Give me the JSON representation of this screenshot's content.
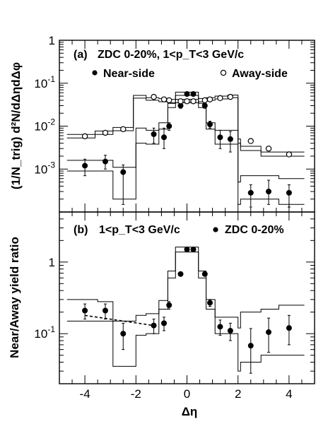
{
  "chart_data": [
    {
      "type": "scatter",
      "panel_label": "(a)",
      "title": "ZDC 0-20%, 1<p_T<3 GeV/c",
      "ylabel": "(1/N_trig) d²N/dΔηdΔφ",
      "xlabel": "",
      "xlim": [
        -5,
        5
      ],
      "ylim": [
        0.0001,
        1
      ],
      "yscale": "log",
      "y_ticks": [
        {
          "value": 0.001,
          "base": "10",
          "exp": "-3"
        },
        {
          "value": 0.01,
          "base": "10",
          "exp": "-2"
        },
        {
          "value": 0.1,
          "base": "10",
          "exp": "-1"
        },
        {
          "value": 1,
          "base": "1",
          "exp": ""
        }
      ],
      "legend_position": "top-left",
      "series": [
        {
          "name": "Near-side",
          "marker": "filled-circle",
          "x": [
            -4.0,
            -3.2,
            -2.5,
            -1.3,
            -0.9,
            -0.7,
            -0.25,
            0.0,
            0.25,
            0.7,
            0.9,
            1.3,
            1.7,
            2.5,
            3.2,
            4.0
          ],
          "y": [
            0.0012,
            0.0015,
            0.00085,
            0.0065,
            0.0055,
            0.01,
            0.03,
            0.056,
            0.056,
            0.03,
            0.011,
            0.0055,
            0.005,
            0.00028,
            0.0003,
            0.00028
          ],
          "err_low": [
            0.0005,
            0.0005,
            0.0007,
            0.0025,
            0.0025,
            0.002,
            0.004,
            0.004,
            0.004,
            0.004,
            0.002,
            0.0025,
            0.0025,
            0.00015,
            0.00015,
            0.00015
          ],
          "err_high": [
            0.0005,
            0.0006,
            0.0004,
            0.0025,
            0.0035,
            0.002,
            0.004,
            0.004,
            0.004,
            0.004,
            0.002,
            0.0025,
            0.0025,
            0.00015,
            0.00025,
            0.00015
          ],
          "sys_edges": [
            -4.7,
            -3.5,
            -2.9,
            -2.0,
            -1.6,
            -1.1,
            -0.75,
            -0.45,
            -0.15,
            0.15,
            0.45,
            0.75,
            1.1,
            1.6,
            2.0,
            2.1,
            2.9,
            3.6,
            4.6
          ],
          "sys_low": [
            0.0009,
            0.0009,
            0.0002,
            0.004,
            0.0038,
            0.0085,
            0.027,
            0.052,
            0.052,
            0.052,
            0.027,
            0.0085,
            0.0038,
            0.0038,
            0.00015,
            0.0002,
            0.0002,
            0.00015
          ],
          "sys_high": [
            0.0016,
            0.0016,
            0.0011,
            0.009,
            0.008,
            0.012,
            0.034,
            0.062,
            0.062,
            0.062,
            0.034,
            0.012,
            0.008,
            0.008,
            0.0005,
            0.0007,
            0.0007,
            0.0006
          ]
        },
        {
          "name": "Away-side",
          "marker": "open-circle",
          "x": [
            -4.0,
            -3.2,
            -2.5,
            -1.3,
            -0.9,
            -0.7,
            -0.25,
            0.0,
            0.25,
            0.7,
            0.9,
            1.3,
            1.7,
            2.5,
            3.2,
            4.0
          ],
          "y": [
            0.0058,
            0.007,
            0.0085,
            0.048,
            0.042,
            0.04,
            0.038,
            0.038,
            0.038,
            0.04,
            0.042,
            0.045,
            0.048,
            0.0045,
            0.003,
            0.0022
          ],
          "err_low": [
            0.0002,
            0.0003,
            0.0003,
            0.002,
            0.002,
            0.002,
            0.002,
            0.002,
            0.002,
            0.002,
            0.002,
            0.002,
            0.002,
            0.0002,
            0.0002,
            0.0002
          ],
          "err_high": [
            0.0002,
            0.0003,
            0.0003,
            0.002,
            0.002,
            0.002,
            0.002,
            0.002,
            0.002,
            0.002,
            0.002,
            0.002,
            0.002,
            0.0002,
            0.0002,
            0.0002
          ],
          "sys_edges": [
            -4.7,
            -3.6,
            -2.9,
            -2.1,
            -1.6,
            -1.1,
            -0.75,
            -0.45,
            -0.15,
            0.15,
            0.45,
            0.75,
            1.1,
            1.6,
            2.0,
            2.1,
            2.9,
            3.6,
            4.6
          ],
          "sys_low": [
            0.0053,
            0.0064,
            0.0078,
            0.045,
            0.04,
            0.037,
            0.035,
            0.035,
            0.035,
            0.035,
            0.037,
            0.04,
            0.043,
            0.046,
            0.004,
            0.0027,
            0.002,
            0.002
          ],
          "sys_high": [
            0.0064,
            0.0077,
            0.0093,
            0.052,
            0.046,
            0.044,
            0.042,
            0.042,
            0.042,
            0.042,
            0.044,
            0.046,
            0.05,
            0.053,
            0.005,
            0.0034,
            0.0025,
            0.0025
          ]
        }
      ]
    },
    {
      "type": "scatter",
      "panel_label": "(b)",
      "title": "1<p_T<3 GeV/c",
      "legend_entry": "ZDC 0-20%",
      "ylabel": "Near/Away yield ratio",
      "xlabel": "Δη",
      "xlim": [
        -5,
        5
      ],
      "ylim": [
        0.02,
        5
      ],
      "yscale": "log",
      "x_ticks": [
        -4,
        -2,
        0,
        2,
        4
      ],
      "y_ticks": [
        {
          "value": 0.1,
          "base": "10",
          "exp": "-1"
        },
        {
          "value": 1,
          "base": "1",
          "exp": ""
        }
      ],
      "series": [
        {
          "name": "ZDC 0-20%",
          "marker": "filled-circle",
          "x": [
            -4.0,
            -3.2,
            -2.5,
            -1.3,
            -0.9,
            -0.7,
            -0.25,
            0.0,
            0.25,
            0.7,
            0.9,
            1.3,
            1.7,
            2.5,
            3.2,
            4.0
          ],
          "y": [
            0.21,
            0.21,
            0.1,
            0.13,
            0.14,
            0.25,
            0.68,
            1.5,
            1.5,
            0.68,
            0.27,
            0.125,
            0.11,
            0.068,
            0.105,
            0.12
          ],
          "err_low": [
            0.05,
            0.05,
            0.04,
            0.03,
            0.03,
            0.03,
            0.03,
            0.05,
            0.05,
            0.03,
            0.03,
            0.03,
            0.03,
            0.04,
            0.05,
            0.05
          ],
          "err_high": [
            0.05,
            0.05,
            0.04,
            0.03,
            0.03,
            0.03,
            0.03,
            0.05,
            0.05,
            0.03,
            0.03,
            0.03,
            0.03,
            0.05,
            0.06,
            0.06
          ],
          "sys_edges": [
            -4.7,
            -3.5,
            -2.9,
            -2.0,
            -1.6,
            -1.1,
            -0.75,
            -0.45,
            -0.15,
            0.15,
            0.45,
            0.75,
            1.1,
            1.6,
            2.0,
            2.1,
            2.9,
            3.6,
            4.6
          ],
          "sys_low": [
            0.15,
            0.15,
            0.035,
            0.095,
            0.1,
            0.22,
            0.6,
            1.38,
            1.38,
            1.38,
            0.6,
            0.22,
            0.1,
            0.1,
            0.03,
            0.04,
            0.05,
            0.05
          ],
          "sys_high": [
            0.3,
            0.28,
            0.15,
            0.18,
            0.19,
            0.29,
            0.75,
            1.62,
            1.62,
            1.62,
            0.75,
            0.3,
            0.17,
            0.17,
            0.12,
            0.2,
            0.22,
            0.25
          ]
        }
      ],
      "fit_line": {
        "x": [
          -4.0,
          -1.3
        ],
        "y": [
          0.18,
          0.13
        ],
        "style": "dashed"
      }
    }
  ]
}
